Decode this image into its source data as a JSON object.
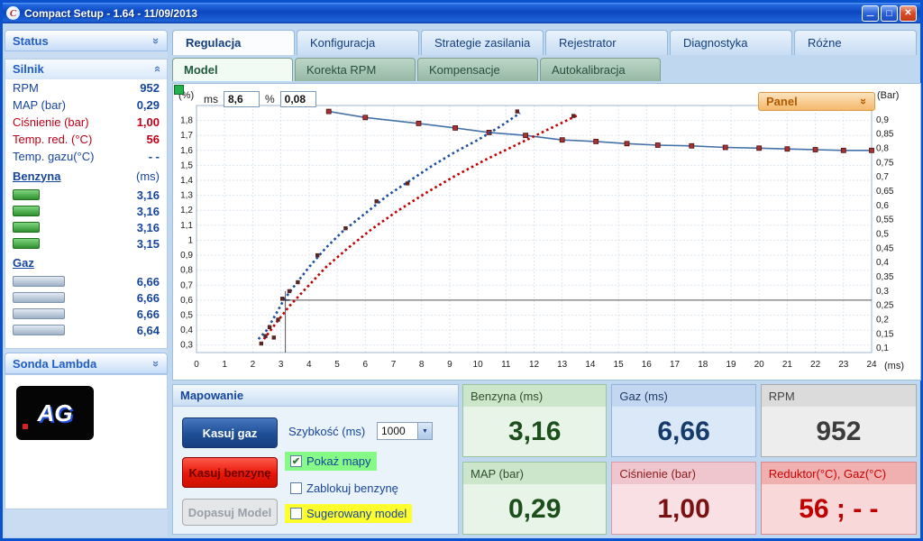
{
  "window": {
    "title": "Compact Setup - 1.64 - 11/09/2013"
  },
  "colors": {
    "titlebar_blue": "#0C47BE",
    "handle_green": "#22B14C",
    "panel_button_orange": "#B05A00",
    "highlight_green": "#86F986",
    "highlight_yellow": "#FFFF2E",
    "alert_red": "#C00018",
    "navy_text": "#16459C"
  },
  "sidebar": {
    "status": {
      "title": "Status"
    },
    "silnik": {
      "title": "Silnik",
      "rows": [
        {
          "label": "RPM",
          "value": "952"
        },
        {
          "label": "MAP (bar)",
          "value": "0,29"
        },
        {
          "label": "Ciśnienie (bar)",
          "value": "1,00"
        },
        {
          "label": "Temp. red. (°C)",
          "value": "56"
        },
        {
          "label": "Temp. gazu(°C)",
          "value": "- -"
        }
      ],
      "benzyna": {
        "label": "Benzyna",
        "unit": "(ms)",
        "values": [
          "3,16",
          "3,16",
          "3,16",
          "3,15"
        ]
      },
      "gaz": {
        "label": "Gaz",
        "values": [
          "6,66",
          "6,66",
          "6,66",
          "6,64"
        ]
      }
    },
    "sonda": {
      "title": "Sonda Lambda",
      "logo_text": "AG"
    }
  },
  "tabs": [
    "Regulacja",
    "Konfiguracja",
    "Strategie zasilania",
    "Rejestrator",
    "Diagnostyka",
    "Różne"
  ],
  "subtabs": [
    "Model",
    "Korekta RPM",
    "Kompensacje",
    "Autokalibracja"
  ],
  "chart_controls": {
    "ms_label": "ms",
    "ms_value": "8,6",
    "pct_label": "%",
    "pct_value": "0,08",
    "panel_button": "Panel"
  },
  "chart_data": {
    "type": "line",
    "x_axis": {
      "label": "(ms)",
      "min": 0,
      "max": 24,
      "tick_values": [
        0,
        1,
        2,
        3,
        4,
        5,
        6,
        7,
        8,
        9,
        10,
        11,
        12,
        13,
        14,
        15,
        16,
        17,
        18,
        19,
        20,
        21,
        22,
        23,
        24
      ],
      "tick_labels": [
        "0",
        "1",
        "2",
        "3",
        "4",
        "5",
        "6",
        "7",
        "8",
        "9",
        "10",
        "11",
        "12",
        "13",
        "14",
        "15",
        "16",
        "17",
        "18",
        "19",
        "20",
        "21",
        "22",
        "23",
        "24"
      ]
    },
    "y_left": {
      "label": "(%)",
      "min": 0.25,
      "max": 1.9,
      "tick_values": [
        1.8,
        1.7,
        1.6,
        1.5,
        1.4,
        1.3,
        1.2,
        1.1,
        1.0,
        0.9,
        0.8,
        0.7,
        0.6,
        0.5,
        0.4,
        0.3
      ],
      "tick_labels": [
        "1,8",
        "1,7",
        "1,6",
        "1,5",
        "1,4",
        "1,3",
        "1,2",
        "1,1",
        "1",
        "0,9",
        "0,8",
        "0,7",
        "0,6",
        "0,5",
        "0,4",
        "0,3"
      ]
    },
    "y_right": {
      "label": "(Bar)",
      "min": 0.085,
      "max": 0.95,
      "tick_values": [
        0.9,
        0.85,
        0.8,
        0.75,
        0.7,
        0.65,
        0.6,
        0.55,
        0.5,
        0.45,
        0.4,
        0.35,
        0.3,
        0.25,
        0.2,
        0.15,
        0.1
      ],
      "tick_labels": [
        "0,9",
        "0,85",
        "0,8",
        "0,75",
        "0,7",
        "0,65",
        "0,6",
        "0,55",
        "0,5",
        "0,45",
        "0,4",
        "0,35",
        "0,3",
        "0,25",
        "0,2",
        "0,15",
        "0,1"
      ]
    },
    "grid": true,
    "crosshair": {
      "x": 3.16,
      "y_left": 0.6
    },
    "series": [
      {
        "name": "model-curve",
        "type": "line",
        "color": "#4472A8",
        "marker": "square",
        "marker_color": "#A83232",
        "points": [
          [
            4.7,
            1.86
          ],
          [
            6.0,
            1.82
          ],
          [
            7.9,
            1.78
          ],
          [
            9.2,
            1.75
          ],
          [
            10.4,
            1.72
          ],
          [
            11.7,
            1.7
          ],
          [
            13.0,
            1.67
          ],
          [
            14.2,
            1.66
          ],
          [
            15.3,
            1.645
          ],
          [
            16.4,
            1.635
          ],
          [
            17.6,
            1.63
          ],
          [
            18.8,
            1.62
          ],
          [
            20.0,
            1.615
          ],
          [
            21.0,
            1.61
          ],
          [
            22.0,
            1.605
          ],
          [
            23.0,
            1.6
          ],
          [
            24.0,
            1.6
          ]
        ]
      },
      {
        "name": "gaz-map-dotted",
        "type": "dotted",
        "color": "#1F4E9C",
        "points": [
          [
            2.2,
            0.34
          ],
          [
            2.5,
            0.4
          ],
          [
            2.8,
            0.5
          ],
          [
            3.1,
            0.6
          ],
          [
            3.5,
            0.7
          ],
          [
            4.0,
            0.82
          ],
          [
            4.6,
            0.95
          ],
          [
            5.2,
            1.06
          ],
          [
            6.0,
            1.18
          ],
          [
            6.8,
            1.3
          ],
          [
            7.6,
            1.4
          ],
          [
            8.4,
            1.5
          ],
          [
            9.2,
            1.59
          ],
          [
            10.0,
            1.67
          ],
          [
            10.8,
            1.76
          ],
          [
            11.5,
            1.85
          ]
        ]
      },
      {
        "name": "benzyna-map-dotted",
        "type": "dotted",
        "color": "#C00000",
        "points": [
          [
            2.4,
            0.34
          ],
          [
            2.8,
            0.44
          ],
          [
            3.3,
            0.56
          ],
          [
            3.9,
            0.68
          ],
          [
            4.6,
            0.82
          ],
          [
            5.4,
            0.95
          ],
          [
            6.2,
            1.07
          ],
          [
            7.1,
            1.19
          ],
          [
            8.1,
            1.31
          ],
          [
            9.2,
            1.43
          ],
          [
            10.3,
            1.54
          ],
          [
            11.4,
            1.64
          ],
          [
            12.5,
            1.74
          ],
          [
            13.6,
            1.84
          ]
        ]
      },
      {
        "name": "calibration-points",
        "type": "squares",
        "color": "#5A2525",
        "points": [
          [
            2.3,
            0.31
          ],
          [
            2.45,
            0.36
          ],
          [
            2.6,
            0.42
          ],
          [
            2.75,
            0.35
          ],
          [
            2.9,
            0.47
          ],
          [
            3.05,
            0.61
          ],
          [
            3.3,
            0.66
          ],
          [
            3.6,
            0.72
          ],
          [
            4.3,
            0.9
          ],
          [
            5.3,
            1.08
          ],
          [
            6.4,
            1.26
          ],
          [
            7.5,
            1.38
          ],
          [
            11.4,
            1.86
          ],
          [
            13.4,
            1.83
          ]
        ]
      }
    ]
  },
  "mapowanie": {
    "title": "Mapowanie",
    "kasuj_gaz": "Kasuj gaz",
    "szybkosc_label": "Szybkość (ms)",
    "szybkosc_value": "1000",
    "kasuj_benzyne": "Kasuj benzynę",
    "pokaz_mapy": {
      "label": "Pokaż mapy",
      "checked": true
    },
    "zablokuj": {
      "label": "Zablokuj benzynę",
      "checked": false
    },
    "dopasuj": "Dopasuj Model",
    "sugerowany": {
      "label": "Sugerowany model",
      "checked": false
    }
  },
  "panels": [
    {
      "label": "Benzyna (ms)",
      "value": "3,16"
    },
    {
      "label": "Gaz (ms)",
      "value": "6,66"
    },
    {
      "label": "RPM",
      "value": "952"
    },
    {
      "label": "MAP (bar)",
      "value": "0,29"
    },
    {
      "label": "Ciśnienie (bar)",
      "value": "1,00"
    },
    {
      "label": "Reduktor(°C), Gaz(°C)",
      "value": "56 ; - -"
    }
  ]
}
